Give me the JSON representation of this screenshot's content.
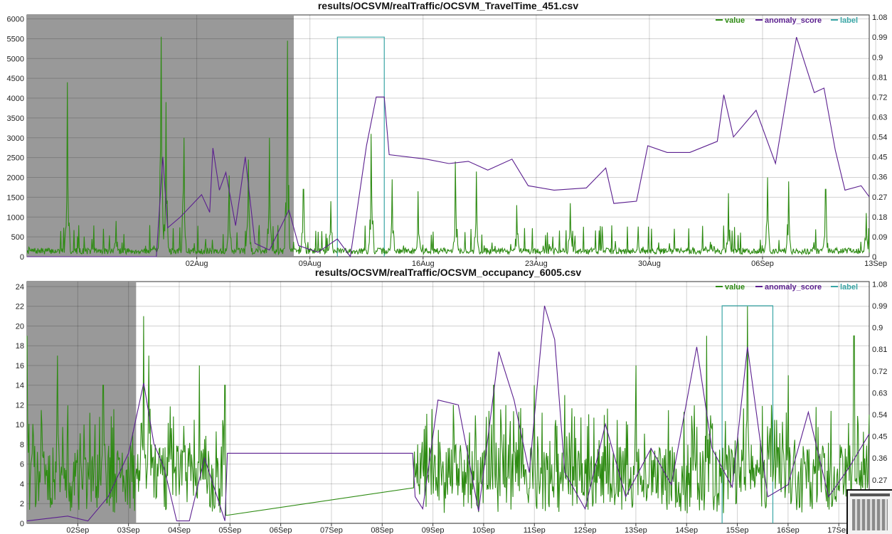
{
  "chart_data": [
    {
      "type": "line",
      "title": "results/OCSVM/realTraffic/OCSVM_TravelTime_451.csv",
      "legend": {
        "placement": "top-right",
        "entries": [
          "value",
          "anomaly_score",
          "label"
        ]
      },
      "colors": {
        "value": "#2e8b13",
        "anomaly_score": "#5b1f8f",
        "label": "#3aa6a6",
        "shade": "#999999"
      },
      "grid": true,
      "x_range": [
        -8.5,
        43.6
      ],
      "y_left": {
        "range": [
          0,
          6100
        ],
        "ticks": [
          0,
          500,
          1000,
          1500,
          2000,
          2500,
          3000,
          3500,
          4000,
          4500,
          5000,
          5500,
          6000
        ],
        "tick_labels": [
          "0",
          "500",
          "1000",
          "1500",
          "2000",
          "2500",
          "3000",
          "3500",
          "4000",
          "4500",
          "5000",
          "5500",
          "6000"
        ]
      },
      "y_right": {
        "range": [
          0,
          1.09
        ],
        "ticks": [
          0,
          0.09,
          0.18,
          0.27,
          0.36,
          0.45,
          0.54,
          0.63,
          0.72,
          0.81,
          0.9,
          0.99,
          1.08
        ],
        "tick_labels": [
          "0",
          "0.09",
          "0.18",
          "0.27",
          "0.36",
          "0.45",
          "0.54",
          "0.63",
          "0.72",
          "0.81",
          "0.9",
          "0.99",
          "1.08"
        ]
      },
      "x_ticks": [
        2,
        9,
        16,
        23,
        30,
        37,
        44
      ],
      "x_tick_labels": [
        "02Aug",
        "09Aug",
        "16Aug",
        "23Aug",
        "30Aug",
        "06Sep",
        "13Sep"
      ],
      "shade": [
        -8.5,
        8.0
      ],
      "label_windows": [
        [
          10.7,
          13.6
        ]
      ],
      "value_peaks": [
        [
          -6.0,
          4400
        ],
        [
          -3.0,
          900
        ],
        [
          -0.2,
          5550
        ],
        [
          0.1,
          3900
        ],
        [
          1.2,
          3000
        ],
        [
          4.0,
          2050
        ],
        [
          5.2,
          2450
        ],
        [
          6.5,
          3000
        ],
        [
          7.6,
          5450
        ],
        [
          8.6,
          1700
        ],
        [
          10.3,
          1400
        ],
        [
          12.8,
          3100
        ],
        [
          14.1,
          1950
        ],
        [
          15.7,
          1650
        ],
        [
          18.0,
          2400
        ],
        [
          19.3,
          2150
        ],
        [
          21.8,
          1300
        ],
        [
          25.1,
          1350
        ],
        [
          29.3,
          760
        ],
        [
          34.9,
          1600
        ],
        [
          37.3,
          2000
        ],
        [
          38.6,
          1900
        ],
        [
          40.9,
          1700
        ],
        [
          43.4,
          1100
        ]
      ],
      "value_baseline": 130,
      "anomaly_score": [
        [
          -8.5,
          0.0
        ],
        [
          -0.5,
          0.0
        ],
        [
          -0.1,
          0.45
        ],
        [
          0.2,
          0.13
        ],
        [
          1.0,
          0.18
        ],
        [
          2.3,
          0.28
        ],
        [
          2.8,
          0.2
        ],
        [
          3.0,
          0.49
        ],
        [
          3.4,
          0.3
        ],
        [
          3.8,
          0.38
        ],
        [
          4.4,
          0.14
        ],
        [
          5.0,
          0.45
        ],
        [
          5.6,
          0.06
        ],
        [
          6.5,
          0.03
        ],
        [
          7.7,
          0.21
        ],
        [
          8.3,
          0.05
        ],
        [
          9.5,
          0.02
        ],
        [
          10.7,
          0.08
        ],
        [
          11.5,
          0.0
        ],
        [
          12.5,
          0.5
        ],
        [
          13.1,
          0.72
        ],
        [
          13.6,
          0.72
        ],
        [
          13.9,
          0.46
        ],
        [
          16.2,
          0.44
        ],
        [
          17.6,
          0.42
        ],
        [
          18.8,
          0.43
        ],
        [
          20.0,
          0.39
        ],
        [
          21.5,
          0.44
        ],
        [
          22.5,
          0.32
        ],
        [
          24.1,
          0.3
        ],
        [
          26.1,
          0.31
        ],
        [
          27.3,
          0.4
        ],
        [
          27.8,
          0.24
        ],
        [
          29.2,
          0.25
        ],
        [
          29.9,
          0.5
        ],
        [
          31.1,
          0.47
        ],
        [
          32.5,
          0.47
        ],
        [
          34.2,
          0.52
        ],
        [
          34.6,
          0.73
        ],
        [
          35.2,
          0.54
        ],
        [
          36.6,
          0.66
        ],
        [
          37.8,
          0.42
        ],
        [
          39.1,
          0.99
        ],
        [
          40.2,
          0.74
        ],
        [
          40.8,
          0.76
        ],
        [
          41.5,
          0.48
        ],
        [
          42.1,
          0.3
        ],
        [
          43.1,
          0.32
        ],
        [
          43.6,
          0.27
        ]
      ]
    },
    {
      "type": "line",
      "title": "results/OCSVM/realTraffic/OCSVM_occupancy_6005.csv",
      "legend": {
        "placement": "top-right",
        "entries": [
          "value",
          "anomaly_score",
          "label"
        ]
      },
      "colors": {
        "value": "#2e8b13",
        "anomaly_score": "#5b1f8f",
        "label": "#3aa6a6",
        "shade": "#999999"
      },
      "grid": true,
      "x_range": [
        1.0,
        17.6
      ],
      "y_left": {
        "range": [
          0,
          24.5
        ],
        "ticks": [
          0,
          2,
          4,
          6,
          8,
          10,
          12,
          14,
          16,
          18,
          20,
          22,
          24
        ],
        "tick_labels": [
          "0",
          "2",
          "4",
          "6",
          "8",
          "10",
          "12",
          "14",
          "16",
          "18",
          "20",
          "22",
          "24"
        ]
      },
      "y_right": {
        "range": [
          0.09,
          1.09
        ],
        "ticks": [
          0.18,
          0.27,
          0.36,
          0.45,
          0.54,
          0.63,
          0.72,
          0.81,
          0.9,
          0.99,
          1.08
        ],
        "tick_labels": [
          "0.18",
          "0.27",
          "0.36",
          "0.45",
          "0.54",
          "0.63",
          "0.72",
          "0.81",
          "0.9",
          "0.99",
          "1.08"
        ]
      },
      "x_ticks": [
        2,
        3,
        4,
        5,
        6,
        7,
        8,
        9,
        10,
        11,
        12,
        13,
        14,
        15,
        16,
        17
      ],
      "x_tick_labels": [
        "02Sep",
        "03Sep",
        "04Sep",
        "05Sep",
        "06Sep",
        "07Sep",
        "08Sep",
        "09Sep",
        "10Sep",
        "11Sep",
        "12Sep",
        "13Sep",
        "14Sep",
        "15Sep",
        "16Sep",
        "17Sep"
      ],
      "shade": [
        1.0,
        3.15
      ],
      "label_windows": [
        [
          14.7,
          15.7
        ]
      ],
      "value_peaks": [
        [
          1.0,
          19.0
        ],
        [
          1.6,
          17.0
        ],
        [
          2.5,
          14.0
        ],
        [
          3.3,
          21.0
        ],
        [
          3.4,
          17.0
        ],
        [
          4.4,
          16.0
        ],
        [
          4.9,
          14.0
        ],
        [
          8.7,
          8.0
        ],
        [
          9.4,
          12.0
        ],
        [
          10.2,
          14.0
        ],
        [
          11.0,
          14.0
        ],
        [
          11.6,
          13.0
        ],
        [
          13.0,
          16.0
        ],
        [
          14.4,
          19.0
        ],
        [
          15.2,
          22.0
        ],
        [
          16.0,
          15.0
        ],
        [
          17.3,
          19.0
        ],
        [
          17.6,
          11.0
        ]
      ],
      "value_gap": [
        [
          4.92,
          0.8
        ],
        [
          8.62,
          3.6
        ]
      ],
      "anomaly_score": [
        [
          1.0,
          0.1
        ],
        [
          1.8,
          0.12
        ],
        [
          2.2,
          0.1
        ],
        [
          2.6,
          0.2
        ],
        [
          3.0,
          0.38
        ],
        [
          3.3,
          0.67
        ],
        [
          3.5,
          0.42
        ],
        [
          3.7,
          0.32
        ],
        [
          3.95,
          0.1
        ],
        [
          4.2,
          0.1
        ],
        [
          4.5,
          0.36
        ],
        [
          4.9,
          0.1
        ],
        [
          4.95,
          0.38
        ],
        [
          8.6,
          0.38
        ],
        [
          8.65,
          0.2
        ],
        [
          8.8,
          0.15
        ],
        [
          9.1,
          0.6
        ],
        [
          9.5,
          0.58
        ],
        [
          9.9,
          0.14
        ],
        [
          10.3,
          0.8
        ],
        [
          10.6,
          0.6
        ],
        [
          10.9,
          0.3
        ],
        [
          11.2,
          0.99
        ],
        [
          11.4,
          0.85
        ],
        [
          11.6,
          0.3
        ],
        [
          12.0,
          0.15
        ],
        [
          12.4,
          0.5
        ],
        [
          12.8,
          0.2
        ],
        [
          13.3,
          0.4
        ],
        [
          13.7,
          0.25
        ],
        [
          14.2,
          0.82
        ],
        [
          14.5,
          0.4
        ],
        [
          14.9,
          0.24
        ],
        [
          15.2,
          0.82
        ],
        [
          15.6,
          0.2
        ],
        [
          16.0,
          0.25
        ],
        [
          16.4,
          0.55
        ],
        [
          16.8,
          0.2
        ],
        [
          17.2,
          0.32
        ],
        [
          17.6,
          0.46
        ]
      ]
    }
  ]
}
